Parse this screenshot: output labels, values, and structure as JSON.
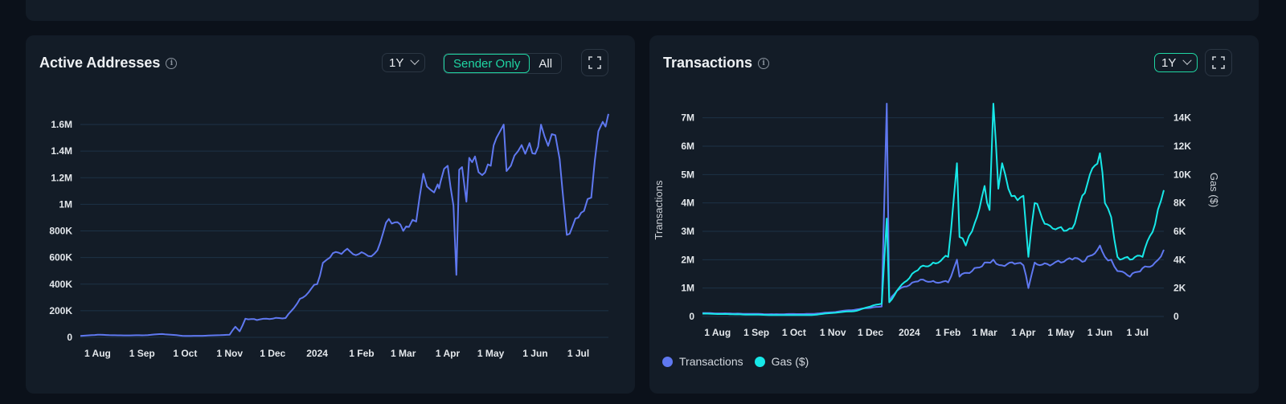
{
  "colors": {
    "accent": "#1fd6a3",
    "transactions": "#5f78f0",
    "gas": "#17e8e8",
    "grid": "#1d3247",
    "card": "#131c27",
    "background": "#0b111a"
  },
  "active_addresses": {
    "title": "Active Addresses",
    "info_icon": "info-icon",
    "range": "1Y",
    "segment": {
      "options": [
        "Sender Only",
        "All"
      ],
      "selected": "Sender Only"
    },
    "expand_icon": "expand-icon"
  },
  "transactions": {
    "title": "Transactions",
    "info_icon": "info-icon",
    "range": "1Y",
    "expand_icon": "expand-icon",
    "legend": [
      {
        "label": "Transactions",
        "color": "#5f78f0"
      },
      {
        "label": "Gas ($)",
        "color": "#17e8e8"
      }
    ]
  },
  "chart_data": [
    {
      "type": "line",
      "title": "Active Addresses",
      "xlabel": "",
      "ylabel": "",
      "x_ticks": [
        "1 Aug",
        "1 Sep",
        "1 Oct",
        "1 Nov",
        "1 Dec",
        "2024",
        "1 Feb",
        "1 Mar",
        "1 Apr",
        "1 May",
        "1 Jun",
        "1 Jul"
      ],
      "y_ticks": [
        "0",
        "200K",
        "400K",
        "600K",
        "800K",
        "1M",
        "1.2M",
        "1.4M",
        "1.6M"
      ],
      "ylim": [
        0,
        1700000
      ],
      "grid": true,
      "series": [
        {
          "name": "Active Addresses (Sender Only)",
          "color": "#5f78f0",
          "x": [
            "2023-07-20",
            "2023-08-01",
            "2023-08-15",
            "2023-09-01",
            "2023-09-15",
            "2023-10-01",
            "2023-10-15",
            "2023-11-01",
            "2023-11-05",
            "2023-11-08",
            "2023-11-12",
            "2023-11-20",
            "2023-12-01",
            "2023-12-10",
            "2023-12-20",
            "2024-01-01",
            "2024-01-05",
            "2024-01-10",
            "2024-01-20",
            "2024-02-01",
            "2024-02-10",
            "2024-02-20",
            "2024-03-01",
            "2024-03-05",
            "2024-03-10",
            "2024-03-15",
            "2024-03-20",
            "2024-03-25",
            "2024-03-26",
            "2024-03-27",
            "2024-04-01",
            "2024-04-05",
            "2024-04-07",
            "2024-04-09",
            "2024-04-11",
            "2024-04-14",
            "2024-04-16",
            "2024-04-20",
            "2024-04-25",
            "2024-05-01",
            "2024-05-05",
            "2024-05-08",
            "2024-05-10",
            "2024-05-12",
            "2024-05-15",
            "2024-05-20",
            "2024-05-25",
            "2024-05-28",
            "2024-06-01",
            "2024-06-05",
            "2024-06-10",
            "2024-06-15",
            "2024-06-18",
            "2024-06-20",
            "2024-06-23",
            "2024-07-01",
            "2024-07-05",
            "2024-07-10",
            "2024-07-15",
            "2024-07-18",
            "2024-07-22"
          ],
          "values": [
            10000,
            20000,
            15000,
            15000,
            25000,
            10000,
            12000,
            20000,
            80000,
            45000,
            140000,
            130000,
            140000,
            145000,
            290000,
            400000,
            560000,
            600000,
            650000,
            640000,
            630000,
            890000,
            800000,
            830000,
            870000,
            1230000,
            1110000,
            1150000,
            1120000,
            1170000,
            1290000,
            990000,
            470000,
            1260000,
            1280000,
            1020000,
            1350000,
            1360000,
            1220000,
            1290000,
            1500000,
            1560000,
            1600000,
            1250000,
            1290000,
            1400000,
            1380000,
            1460000,
            1380000,
            1600000,
            1440000,
            1520000,
            1340000,
            1100000,
            770000,
            900000,
            950000,
            1050000,
            1550000,
            1620000,
            1680000
          ]
        }
      ]
    },
    {
      "type": "line",
      "title": "Transactions",
      "xlabel": "",
      "ylabel": "Transactions",
      "ylabel_right": "Gas ($)",
      "x_ticks": [
        "1 Aug",
        "1 Sep",
        "1 Oct",
        "1 Nov",
        "1 Dec",
        "2024",
        "1 Feb",
        "1 Mar",
        "1 Apr",
        "1 May",
        "1 Jun",
        "1 Jul"
      ],
      "y_ticks": [
        "0",
        "1M",
        "2M",
        "3M",
        "4M",
        "5M",
        "6M",
        "7M"
      ],
      "y_ticks_right": [
        "0",
        "2K",
        "4K",
        "6K",
        "8K",
        "10K",
        "12K",
        "14K"
      ],
      "ylim": [
        0,
        7500000
      ],
      "ylim_right": [
        0,
        15000
      ],
      "grid": true,
      "legend_position": "bottom-left",
      "series": [
        {
          "name": "Transactions",
          "axis": "left",
          "color": "#5f78f0",
          "x": [
            "2023-07-20",
            "2023-08-15",
            "2023-09-15",
            "2023-10-15",
            "2023-11-01",
            "2023-11-20",
            "2023-12-01",
            "2023-12-10",
            "2023-12-14",
            "2023-12-16",
            "2023-12-18",
            "2023-12-22",
            "2024-01-01",
            "2024-01-10",
            "2024-01-20",
            "2024-02-01",
            "2024-02-08",
            "2024-02-10",
            "2024-02-20",
            "2024-03-01",
            "2024-03-08",
            "2024-03-15",
            "2024-03-25",
            "2024-04-01",
            "2024-04-05",
            "2024-04-10",
            "2024-04-20",
            "2024-05-01",
            "2024-05-10",
            "2024-05-20",
            "2024-06-01",
            "2024-06-05",
            "2024-06-10",
            "2024-06-15",
            "2024-06-25",
            "2024-07-05",
            "2024-07-15",
            "2024-07-22"
          ],
          "values": [
            120000,
            100000,
            80000,
            90000,
            150000,
            250000,
            300000,
            350000,
            7500000,
            500000,
            700000,
            900000,
            1100000,
            1300000,
            1250000,
            1200000,
            2000000,
            1400000,
            1600000,
            1900000,
            2000000,
            1800000,
            1850000,
            1800000,
            1000000,
            1900000,
            1850000,
            1900000,
            2000000,
            1950000,
            2500000,
            2100000,
            2000000,
            1600000,
            1400000,
            1700000,
            1900000,
            2350000
          ]
        },
        {
          "name": "Gas ($)",
          "axis": "right",
          "color": "#17e8e8",
          "x": [
            "2023-07-20",
            "2023-08-15",
            "2023-09-15",
            "2023-10-15",
            "2023-11-01",
            "2023-11-20",
            "2023-12-01",
            "2023-12-10",
            "2023-12-14",
            "2023-12-16",
            "2023-12-18",
            "2023-12-22",
            "2024-01-01",
            "2024-01-10",
            "2024-01-20",
            "2024-02-01",
            "2024-02-08",
            "2024-02-10",
            "2024-02-15",
            "2024-02-20",
            "2024-03-01",
            "2024-03-05",
            "2024-03-08",
            "2024-03-12",
            "2024-03-15",
            "2024-03-20",
            "2024-03-25",
            "2024-04-01",
            "2024-04-05",
            "2024-04-10",
            "2024-04-20",
            "2024-05-01",
            "2024-05-10",
            "2024-05-20",
            "2024-06-01",
            "2024-06-05",
            "2024-06-10",
            "2024-06-15",
            "2024-06-25",
            "2024-07-05",
            "2024-07-15",
            "2024-07-22"
          ],
          "values": [
            200,
            150,
            100,
            100,
            250,
            400,
            700,
            900,
            6900,
            1000,
            1200,
            1800,
            2700,
            3500,
            3800,
            4200,
            10800,
            5600,
            5000,
            6000,
            9200,
            7500,
            15000,
            9000,
            10800,
            9000,
            8500,
            8500,
            4200,
            8000,
            6500,
            6300,
            6200,
            8700,
            11500,
            8000,
            7000,
            4200,
            4000,
            4200,
            6500,
            8900
          ]
        }
      ]
    }
  ]
}
